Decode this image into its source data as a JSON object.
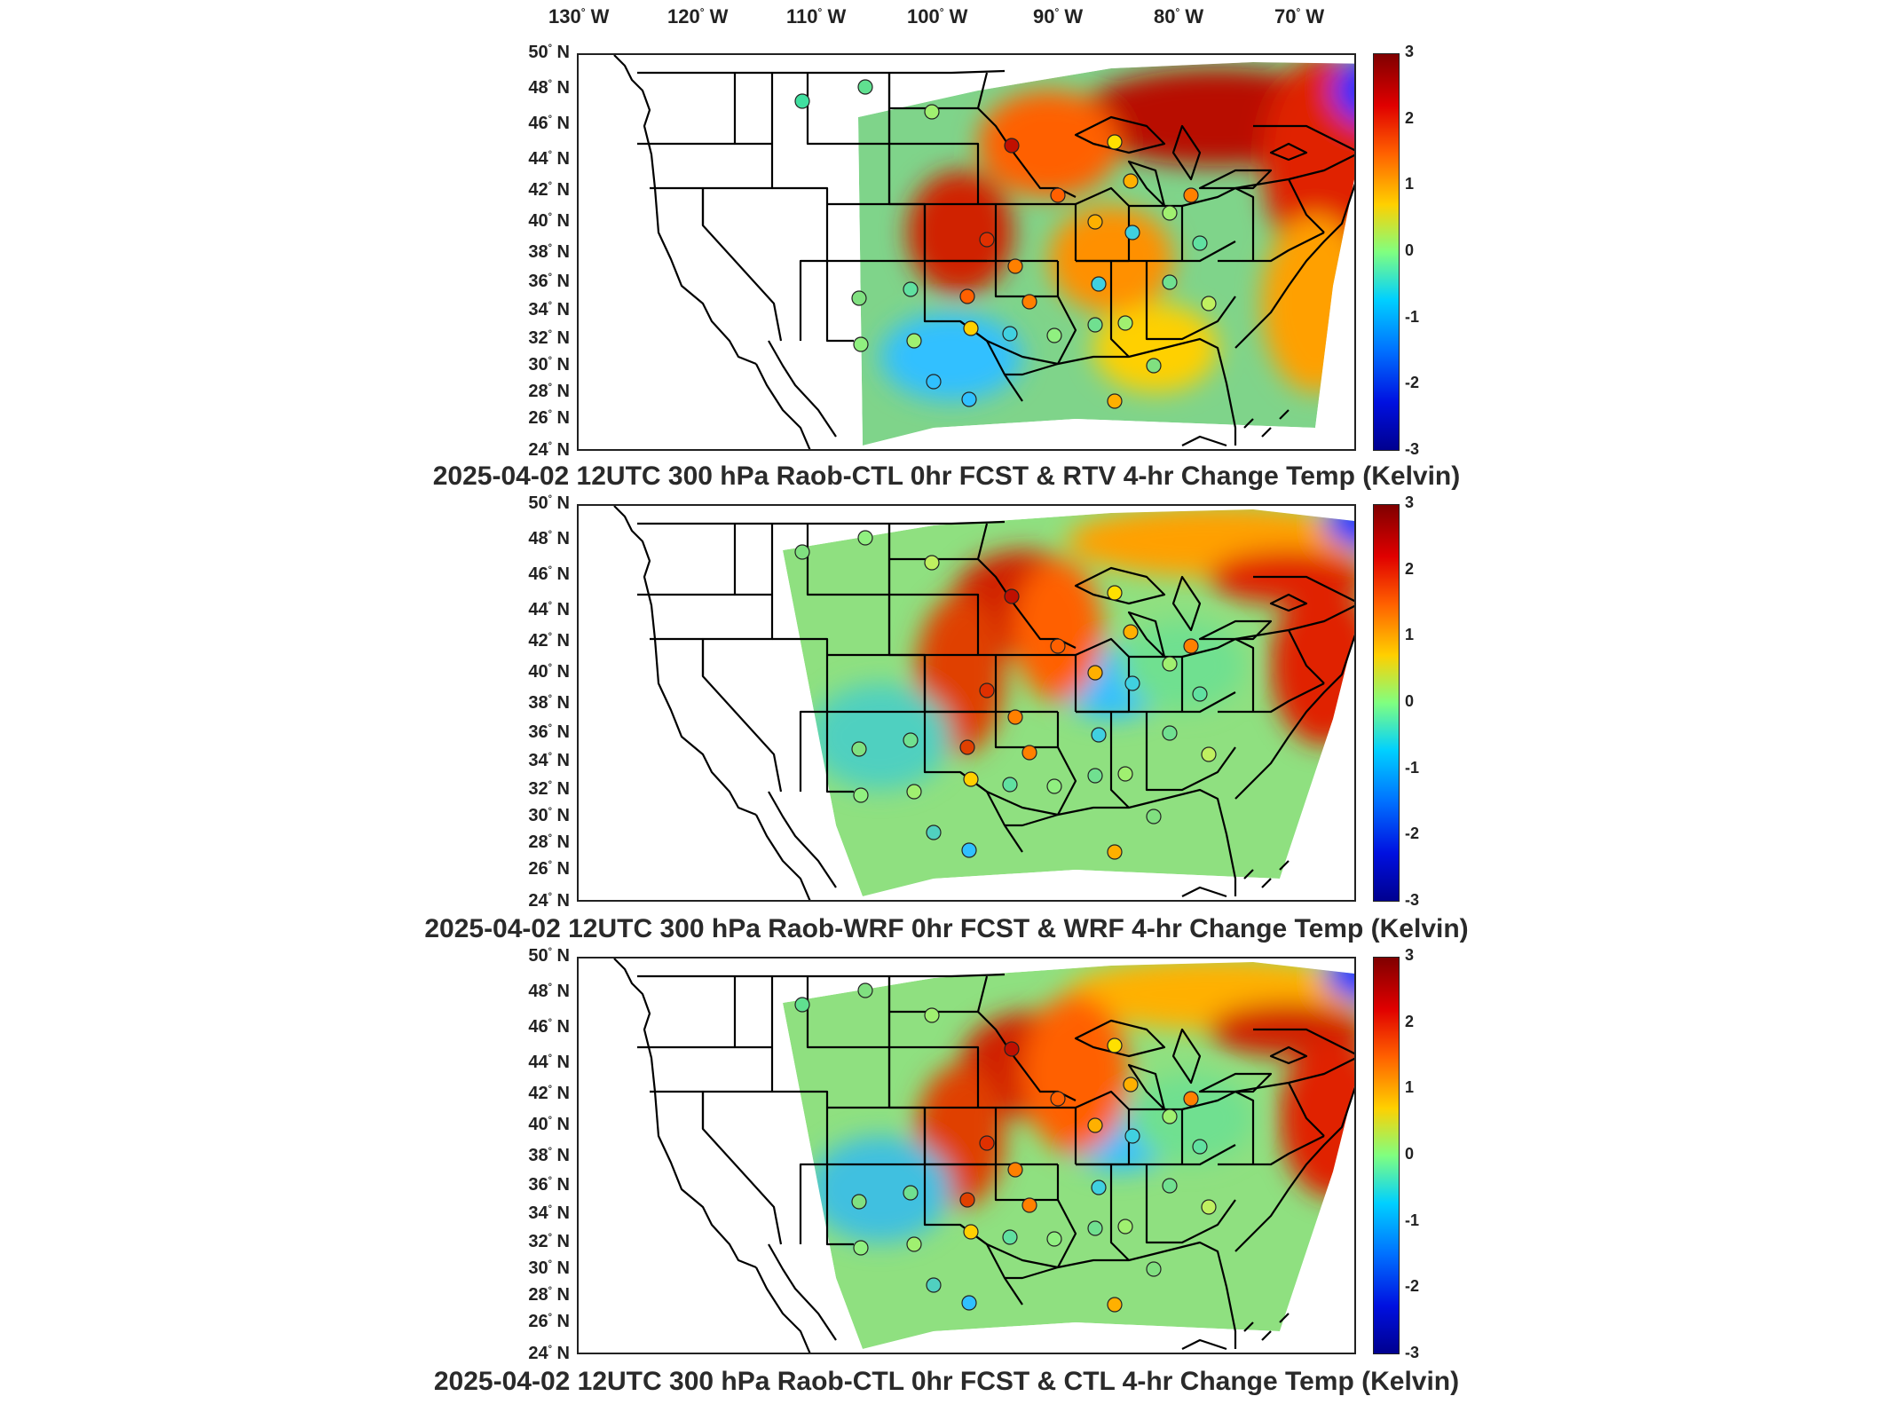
{
  "longitude_labels": [
    "130",
    "120",
    "110",
    "100",
    "90",
    "80",
    "70"
  ],
  "longitude_suffix": "W",
  "latitude_labels": [
    "50",
    "48",
    "46",
    "44",
    "42",
    "40",
    "38",
    "36",
    "34",
    "32",
    "30",
    "28",
    "26",
    "24"
  ],
  "latitude_suffix": "N",
  "degree_symbol": "°",
  "colorbar": {
    "ticks": [
      "3",
      "2",
      "1",
      "0",
      "-1",
      "-2",
      "-3"
    ],
    "range": [
      -3,
      3
    ],
    "colormap": "jet",
    "colors": [
      "#00008f",
      "#0050ff",
      "#00dfff",
      "#7fff7f",
      "#ffdf00",
      "#ff5000",
      "#800000"
    ]
  },
  "panels": [
    {
      "title": "2025-04-02 12UTC 300 hPa Raob-CTL 0hr FCST & RTV 4-hr Change Temp (Kelvin)"
    },
    {
      "title": "2025-04-02 12UTC 300 hPa Raob-WRF 0hr FCST & WRF 4-hr Change Temp (Kelvin)"
    },
    {
      "title": "2025-04-02 12UTC 300 hPa Raob-CTL 0hr FCST & CTL 4-hr Change Temp (Kelvin)"
    }
  ],
  "colors": {
    "background": "#ffffff",
    "boundaries": "#000000",
    "text": "#222222"
  }
}
